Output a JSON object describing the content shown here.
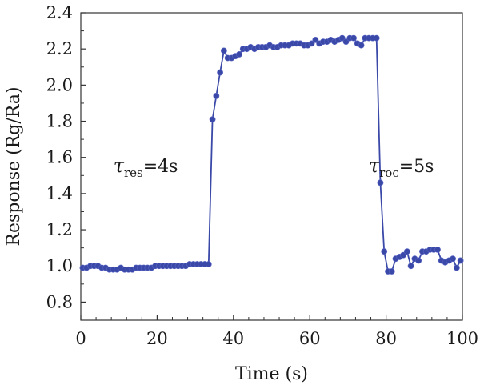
{
  "chart_data": {
    "type": "line",
    "title": "",
    "xlabel": "Time (s)",
    "ylabel": "Response (Rg/Ra)",
    "xlim": [
      0,
      100
    ],
    "ylim": [
      0.7,
      2.4
    ],
    "x_ticks": [
      0,
      20,
      40,
      60,
      80,
      100
    ],
    "x_tick_labels": [
      "0",
      "20",
      "40",
      "60",
      "80",
      "100"
    ],
    "y_ticks": [
      0.8,
      1.0,
      1.2,
      1.4,
      1.6,
      1.8,
      2.0,
      2.2,
      2.4
    ],
    "y_tick_labels": [
      "0.8",
      "1.0",
      "1.2",
      "1.4",
      "1.6",
      "1.8",
      "2.0",
      "2.2",
      "2.4"
    ],
    "grid": false,
    "series_color": "#3a48a8",
    "series": [
      {
        "name": "",
        "x": [
          0.5,
          1.5,
          2.5,
          3.5,
          4.5,
          5.5,
          6.5,
          7.5,
          8.5,
          9.5,
          10.5,
          11.5,
          12.5,
          13.5,
          14.5,
          15.5,
          16.5,
          17.5,
          18.5,
          19.5,
          20.5,
          21.5,
          22.5,
          23.5,
          24.5,
          25.5,
          26.5,
          27.5,
          28.5,
          29.5,
          30.5,
          31.5,
          32.5,
          33.5,
          34.5,
          35.5,
          36.5,
          37.5,
          38.5,
          39.5,
          40.5,
          41.5,
          42.5,
          43.5,
          44.5,
          45.5,
          46.5,
          47.5,
          48.5,
          49.5,
          50.5,
          51.5,
          52.5,
          53.5,
          54.5,
          55.5,
          56.5,
          57.5,
          58.5,
          59.5,
          60.5,
          61.5,
          62.5,
          63.5,
          64.5,
          65.5,
          66.5,
          67.5,
          68.5,
          69.5,
          70.5,
          71.5,
          72.5,
          73.5,
          74.5,
          75.5,
          76.5,
          77.5,
          78.5,
          79.5,
          80.5,
          81.5,
          82.5,
          83.5,
          84.5,
          85.5,
          86.5,
          87.5,
          88.5,
          89.5,
          90.5,
          91.5,
          92.5,
          93.5,
          94.5,
          95.5,
          96.5,
          97.5,
          98.5,
          99.5
        ],
        "y": [
          0.99,
          0.99,
          1.0,
          1.0,
          1.0,
          0.99,
          0.99,
          0.98,
          0.98,
          0.98,
          0.99,
          0.98,
          0.98,
          0.98,
          0.99,
          0.99,
          0.99,
          0.99,
          0.99,
          1.0,
          1.0,
          1.0,
          1.0,
          1.0,
          1.0,
          1.0,
          1.0,
          1.0,
          1.01,
          1.01,
          1.01,
          1.01,
          1.01,
          1.01,
          1.81,
          1.94,
          2.07,
          2.19,
          2.15,
          2.15,
          2.16,
          2.17,
          2.2,
          2.2,
          2.21,
          2.2,
          2.21,
          2.21,
          2.21,
          2.22,
          2.21,
          2.21,
          2.22,
          2.22,
          2.22,
          2.23,
          2.23,
          2.23,
          2.22,
          2.22,
          2.23,
          2.25,
          2.23,
          2.24,
          2.24,
          2.25,
          2.24,
          2.25,
          2.26,
          2.24,
          2.26,
          2.26,
          2.23,
          2.22,
          2.26,
          2.26,
          2.26,
          2.26,
          1.46,
          1.08,
          0.97,
          0.97,
          1.04,
          1.05,
          1.06,
          1.08,
          1.0,
          1.04,
          1.03,
          1.08,
          1.08,
          1.09,
          1.09,
          1.09,
          1.03,
          1.02,
          1.03,
          1.04,
          0.99,
          1.03
        ]
      }
    ],
    "annotations": [
      {
        "symbol": "τ",
        "subscript": "res",
        "text": "=4s",
        "x": 17,
        "y": 1.52
      },
      {
        "symbol": "τ",
        "subscript": "roc",
        "text": "=5s",
        "x": 84,
        "y": 1.52
      }
    ]
  }
}
